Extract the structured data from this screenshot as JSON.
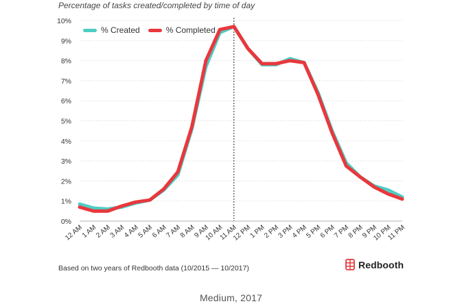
{
  "chart_data": {
    "type": "line",
    "title": "Percentage of tasks created/completed by time of day",
    "categories": [
      "12 AM",
      "1 AM",
      "2 AM",
      "3 AM",
      "4 AM",
      "5 AM",
      "6 AM",
      "7 AM",
      "8 AM",
      "9 AM",
      "10 AM",
      "11 AM",
      "12 PM",
      "1 PM",
      "2 PM",
      "3 PM",
      "4 PM",
      "5 PM",
      "6 PM",
      "7 PM",
      "8 PM",
      "9 PM",
      "10 PM",
      "11 PM"
    ],
    "yticks": [
      "0%",
      "1%",
      "2%",
      "3%",
      "4%",
      "5%",
      "6%",
      "7%",
      "8%",
      "9%",
      "10%"
    ],
    "ylim": [
      0,
      10
    ],
    "grid": true,
    "legend_position": "top-left",
    "marker_category": "11 AM",
    "series": [
      {
        "name": "% Created",
        "color": "#4ecdc4",
        "values": [
          0.85,
          0.65,
          0.6,
          0.7,
          0.9,
          1.05,
          1.55,
          2.3,
          4.6,
          7.7,
          9.4,
          9.7,
          8.6,
          7.8,
          7.8,
          8.1,
          7.9,
          6.4,
          4.5,
          2.9,
          2.2,
          1.75,
          1.55,
          1.2
        ]
      },
      {
        "name": "% Completed",
        "color": "#e8383d",
        "values": [
          0.7,
          0.5,
          0.5,
          0.75,
          0.95,
          1.05,
          1.6,
          2.45,
          4.7,
          8.0,
          9.55,
          9.7,
          8.6,
          7.85,
          7.85,
          8.0,
          7.9,
          6.3,
          4.4,
          2.75,
          2.2,
          1.7,
          1.35,
          1.1
        ]
      }
    ]
  },
  "footer": {
    "source_note": "Based on two years of Redbooth data (10/2015 — 10/2017)",
    "brand_name": "Redbooth",
    "brand_icon": "redbooth-logo-icon",
    "brand_color": "#e8383d"
  },
  "caption": "Medium, 2017"
}
